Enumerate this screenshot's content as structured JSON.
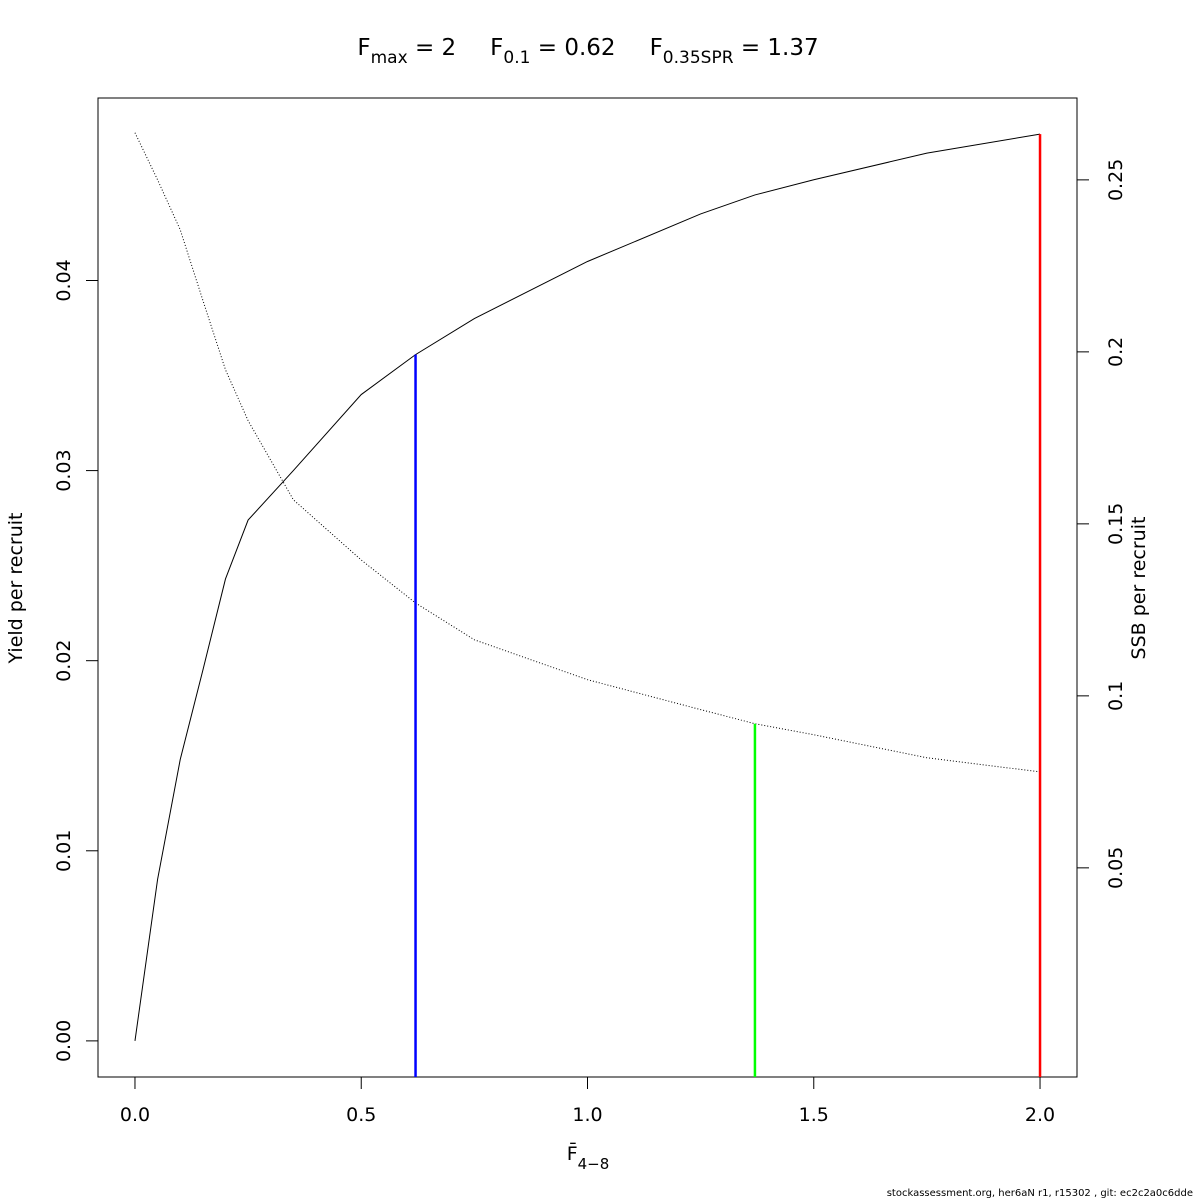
{
  "chart_data": {
    "type": "line",
    "title": [
      {
        "main": "F",
        "sub": "max",
        "rest": " = 2"
      },
      {
        "main": "F",
        "sub": "0.1",
        "rest": " = 0.62"
      },
      {
        "main": "F",
        "sub": "0.35SPR",
        "rest": " = 1.37"
      }
    ],
    "x_label": {
      "main": "F̄",
      "sub": "4−8"
    },
    "y_label": "Yield per recruit",
    "y2_label": "SSB per recruit",
    "footer": "stockassessment.org, her6aN  r1, r15302 , git: ec2c2a0c6dde",
    "x": [
      0,
      0.05,
      0.1,
      0.15,
      0.2,
      0.25,
      0.35,
      0.5,
      0.62,
      0.75,
      1.0,
      1.25,
      1.37,
      1.5,
      1.75,
      2.0
    ],
    "series": [
      {
        "name": "Yield per recruit",
        "color": "#000000",
        "dash": "solid",
        "values": [
          0,
          0.0085,
          0.0148,
          0.0195,
          0.0243,
          0.0274,
          0.03,
          0.034,
          0.0361,
          0.038,
          0.041,
          0.0435,
          0.0445,
          0.0453,
          0.0467,
          0.0477
        ]
      },
      {
        "name": "SSB per recruit",
        "color": "#000000",
        "dash": "dotted",
        "axis": "y2",
        "values": [
          0.2637,
          0.25,
          0.2355,
          0.215,
          0.1948,
          0.18,
          0.157,
          0.1395,
          0.127,
          0.1163,
          0.1047,
          0.096,
          0.0919,
          0.0887,
          0.082,
          0.0779
        ]
      }
    ],
    "reference_lines": [
      {
        "x": 0.62,
        "value": 0.0361,
        "color": "#0000ff"
      },
      {
        "x": 1.37,
        "value": 0.0919,
        "color": "#00ff00",
        "axis": "y2"
      },
      {
        "x": 2.0,
        "value": 0.0477,
        "color": "#ff0000"
      }
    ],
    "xlim": [
      -0.0817,
      2.0817
    ],
    "xticks": [
      {
        "value": 0,
        "label": "0.0"
      },
      0.5,
      {
        "value": 1,
        "label": "1.0"
      },
      1.5,
      {
        "value": 2,
        "label": "2.0"
      }
    ],
    "ylim": [
      -0.0019,
      0.0496
    ],
    "yticks": [
      {
        "value": 0,
        "label": "0.00"
      },
      0.01,
      0.02,
      0.03,
      0.04
    ],
    "y2lim": [
      -0.0108,
      0.2738
    ],
    "y2ticks": [
      0.05,
      0.1,
      0.15,
      0.2,
      0.25
    ]
  }
}
